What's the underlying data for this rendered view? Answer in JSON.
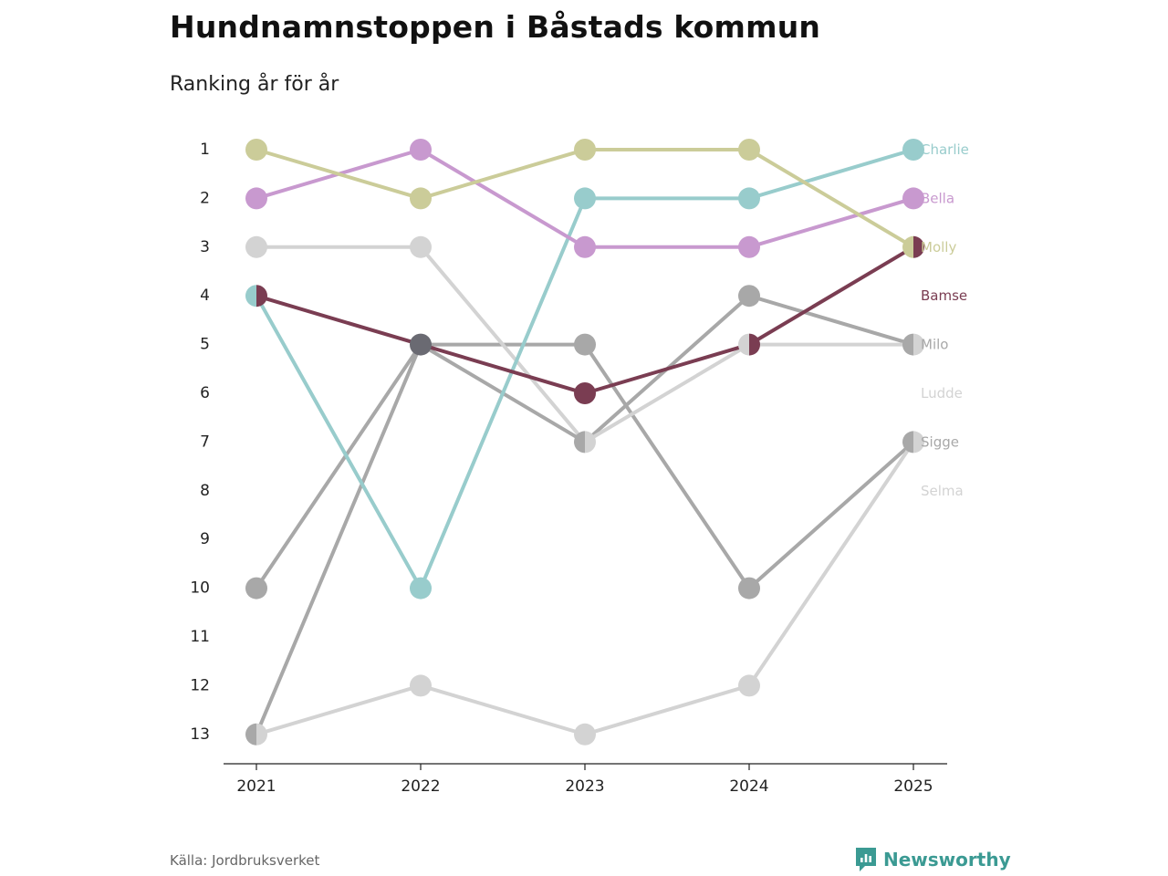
{
  "title": "Hundnamnstoppen i Båstads kommun",
  "subtitle": "Ranking år för år",
  "source": "Källa: Jordbruksverket",
  "brand": "Newsworthy",
  "brand_icon": "newsworthy-logo-icon",
  "chart_data": {
    "type": "line",
    "categories": [
      "2021",
      "2022",
      "2023",
      "2024",
      "2025"
    ],
    "y_ticks": [
      "1",
      "2",
      "3",
      "4",
      "5",
      "6",
      "7",
      "8",
      "9",
      "10",
      "11",
      "12",
      "13"
    ],
    "ylim": [
      1,
      13
    ],
    "y_inverted": true,
    "series": [
      {
        "name": "Sigge",
        "color": "#a8a8a8",
        "values": [
          10,
          5,
          5,
          10,
          7
        ]
      },
      {
        "name": "Milo",
        "color": "#a8a8a8",
        "values": [
          13,
          5,
          7,
          4,
          5
        ]
      },
      {
        "name": "Ludde",
        "color": "#d3d3d3",
        "values": [
          3,
          3,
          7,
          5,
          5
        ]
      },
      {
        "name": "Selma",
        "color": "#d3d3d3",
        "values": [
          13,
          12,
          13,
          12,
          7
        ]
      },
      {
        "name": "Charlie",
        "color": "#98cccc",
        "values": [
          4,
          10,
          2,
          2,
          1
        ]
      },
      {
        "name": "Bella",
        "color": "#c899cf",
        "values": [
          2,
          1,
          3,
          3,
          2
        ]
      },
      {
        "name": "Molly",
        "color": "#cbcc99",
        "values": [
          1,
          2,
          1,
          1,
          3
        ]
      },
      {
        "name": "Bamse",
        "color": "#7a3d52",
        "values": [
          4,
          5,
          6,
          5,
          3
        ]
      }
    ],
    "labels": [
      {
        "name": "Charlie",
        "color": "#98cccc",
        "rank": 1
      },
      {
        "name": "Bella",
        "color": "#c899cf",
        "rank": 2
      },
      {
        "name": "Molly",
        "color": "#cbcc99",
        "rank": 3
      },
      {
        "name": "Bamse",
        "color": "#7a3d52",
        "rank": 4
      },
      {
        "name": "Milo",
        "color": "#a8a8a8",
        "rank": 5
      },
      {
        "name": "Ludde",
        "color": "#d3d3d3",
        "rank": 6
      },
      {
        "name": "Sigge",
        "color": "#a8a8a8",
        "rank": 7
      },
      {
        "name": "Selma",
        "color": "#d3d3d3",
        "rank": 8
      }
    ]
  }
}
